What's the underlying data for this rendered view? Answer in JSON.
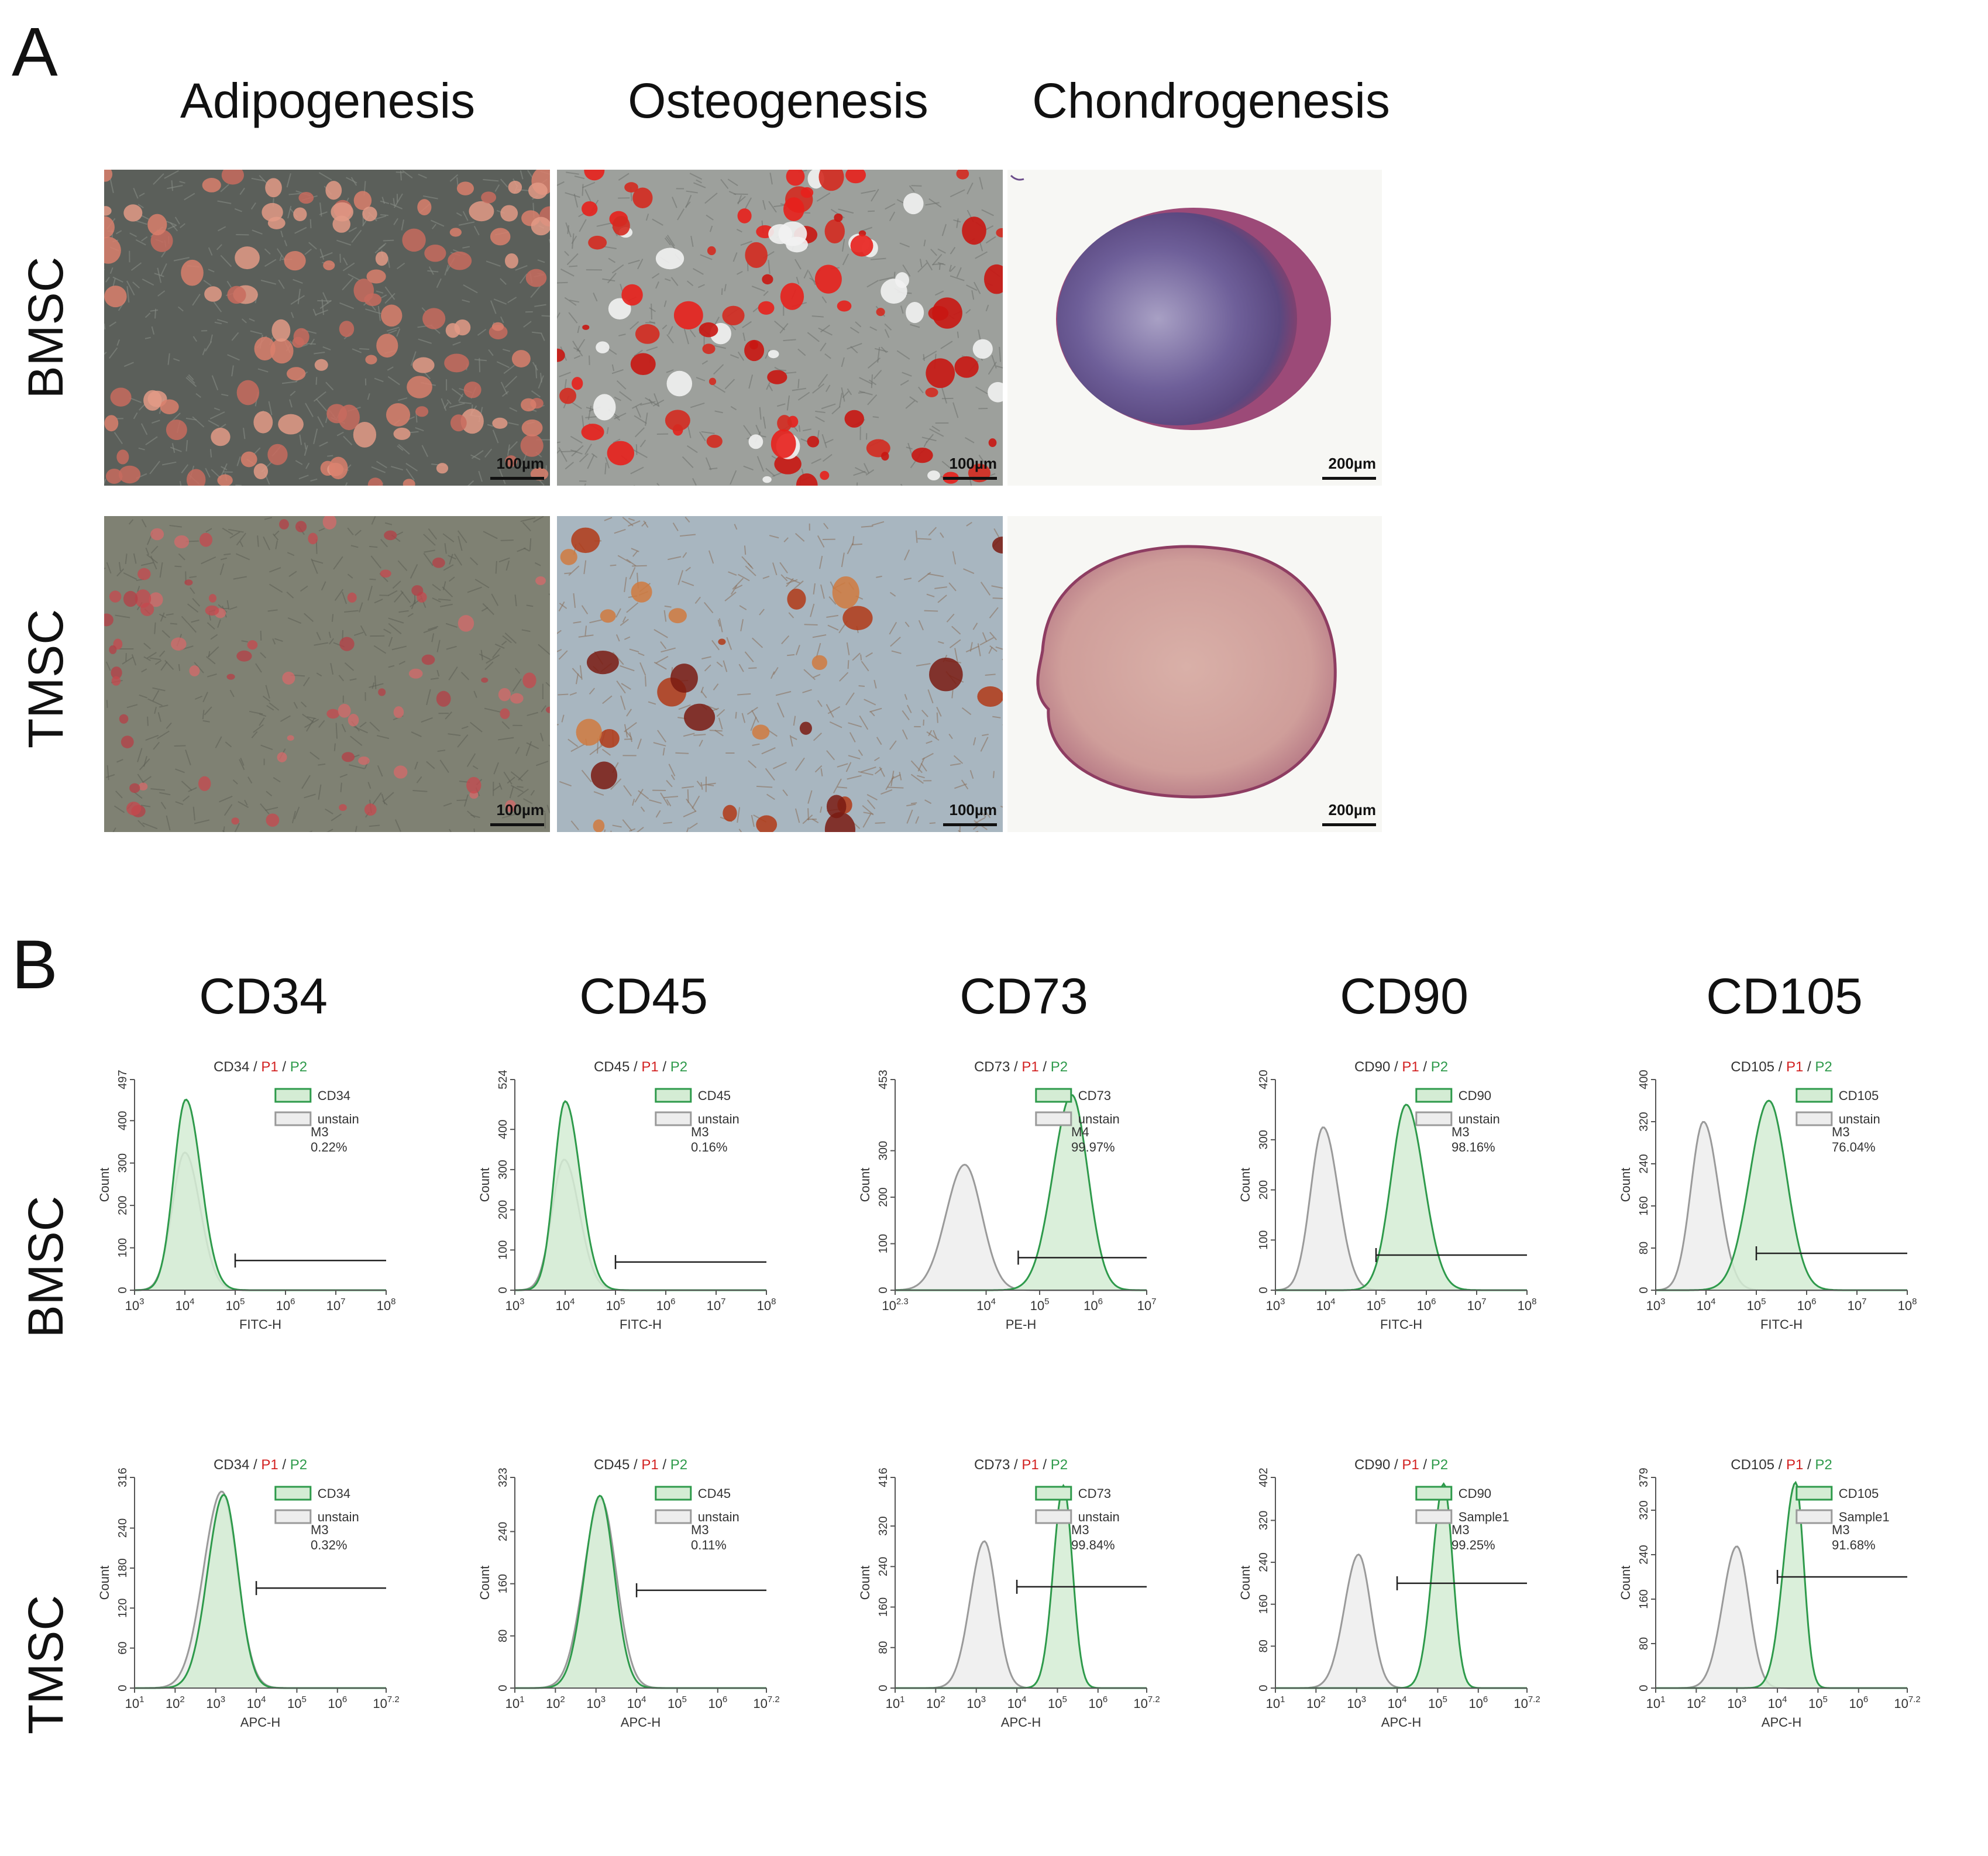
{
  "panel_a": {
    "letter": "A",
    "columns": [
      "Adipogenesis",
      "Osteogenesis",
      "Chondrogenesis"
    ],
    "rows": [
      "BMSC",
      "TMSC"
    ],
    "scale_bars": {
      "bmsc": [
        "100µm",
        "100µm",
        "200µm"
      ],
      "tmsc": [
        "100µm",
        "100µm",
        "200µm"
      ]
    }
  },
  "panel_b": {
    "letter": "B",
    "markers": [
      "CD34",
      "CD45",
      "CD73",
      "CD90",
      "CD105"
    ],
    "rows": [
      "BMSC",
      "TMSC"
    ]
  },
  "colors": {
    "green": "#2e9a4b",
    "green_fill": "#d4ecd4",
    "gray": "#9a9a9a",
    "gray_fill": "#ededed",
    "p1_red": "#d22020"
  },
  "chart_data": [
    {
      "type": "line",
      "id": "bmsc-cd34",
      "title_parts": [
        "CD34",
        "P1",
        "P2"
      ],
      "xlabel": "FITC-H",
      "ylabel": "Count",
      "x_log_range": [
        3,
        8
      ],
      "x_ticks": [
        "10^3",
        "10^4",
        "10^5",
        "10^6",
        "10^7",
        "10^8"
      ],
      "ylim": [
        0,
        497
      ],
      "y_ticks": [
        "0",
        "100",
        "200",
        "300",
        "400",
        "497"
      ],
      "legend": [
        "CD34",
        "unstain"
      ],
      "gate": {
        "name": "M3",
        "pct": "0.22%",
        "x_from": 5.0,
        "x_to": 8.0,
        "y": 70
      },
      "series": [
        {
          "name": "CD34",
          "peak_x": 4.02,
          "peak_y": 450,
          "width_l": 0.24,
          "width_r": 0.3
        },
        {
          "name": "unstain",
          "peak_x": 4.0,
          "peak_y": 325,
          "width_l": 0.25,
          "width_r": 0.3
        }
      ]
    },
    {
      "type": "line",
      "id": "bmsc-cd45",
      "title_parts": [
        "CD45",
        "P1",
        "P2"
      ],
      "xlabel": "FITC-H",
      "ylabel": "Count",
      "x_log_range": [
        3,
        8
      ],
      "x_ticks": [
        "10^3",
        "10^4",
        "10^5",
        "10^6",
        "10^7",
        "10^8"
      ],
      "ylim": [
        0,
        524
      ],
      "y_ticks": [
        "0",
        "100",
        "200",
        "300",
        "400",
        "524"
      ],
      "legend": [
        "CD45",
        "unstain"
      ],
      "gate": {
        "name": "M3",
        "pct": "0.16%",
        "x_from": 5.0,
        "x_to": 8.0,
        "y": 70
      },
      "series": [
        {
          "name": "CD45",
          "peak_x": 4.0,
          "peak_y": 470,
          "width_l": 0.22,
          "width_r": 0.3
        },
        {
          "name": "unstain",
          "peak_x": 3.98,
          "peak_y": 325,
          "width_l": 0.24,
          "width_r": 0.3
        }
      ]
    },
    {
      "type": "line",
      "id": "bmsc-cd73",
      "title_parts": [
        "CD73",
        "P1",
        "P2"
      ],
      "xlabel": "PE-H",
      "ylabel": "Count",
      "x_log_range": [
        2.3,
        7
      ],
      "x_ticks": [
        "10^2.3",
        "10^4",
        "10^5",
        "10^6",
        "10^7"
      ],
      "tick_positions": [
        2.3,
        4,
        5,
        6,
        7
      ],
      "ylim": [
        0,
        453
      ],
      "y_ticks": [
        "0",
        "100",
        "200",
        "300",
        "453"
      ],
      "legend": [
        "CD73",
        "unstain"
      ],
      "gate": {
        "name": "M4",
        "pct": "99.97%",
        "x_from": 4.6,
        "x_to": 7.0,
        "y": 70
      },
      "series": [
        {
          "name": "CD73",
          "peak_x": 5.6,
          "peak_y": 420,
          "width_l": 0.35,
          "width_r": 0.3
        },
        {
          "name": "unstain",
          "peak_x": 3.6,
          "peak_y": 270,
          "width_l": 0.35,
          "width_r": 0.32
        }
      ]
    },
    {
      "type": "line",
      "id": "bmsc-cd90",
      "title_parts": [
        "CD90",
        "P1",
        "P2"
      ],
      "xlabel": "FITC-H",
      "ylabel": "Count",
      "x_log_range": [
        3,
        8
      ],
      "x_ticks": [
        "10^3",
        "10^4",
        "10^5",
        "10^6",
        "10^7",
        "10^8"
      ],
      "ylim": [
        0,
        420
      ],
      "y_ticks": [
        "0",
        "100",
        "200",
        "300",
        "420"
      ],
      "legend": [
        "CD90",
        "unstain"
      ],
      "gate": {
        "name": "M3",
        "pct": "98.16%",
        "x_from": 5.0,
        "x_to": 8.0,
        "y": 70
      },
      "series": [
        {
          "name": "CD90",
          "peak_x": 5.6,
          "peak_y": 370,
          "width_l": 0.3,
          "width_r": 0.35
        },
        {
          "name": "unstain",
          "peak_x": 3.95,
          "peak_y": 325,
          "width_l": 0.25,
          "width_r": 0.3
        }
      ]
    },
    {
      "type": "line",
      "id": "bmsc-cd105",
      "title_parts": [
        "CD105",
        "P1",
        "P2"
      ],
      "xlabel": "FITC-H",
      "ylabel": "Count",
      "x_log_range": [
        3,
        8
      ],
      "x_ticks": [
        "10^3",
        "10^4",
        "10^5",
        "10^6",
        "10^7",
        "10^8"
      ],
      "ylim": [
        0,
        400
      ],
      "y_ticks": [
        "0",
        "80",
        "160",
        "240",
        "320",
        "400"
      ],
      "legend": [
        "CD105",
        "unstain"
      ],
      "gate": {
        "name": "M3",
        "pct": "76.04%",
        "x_from": 5.0,
        "x_to": 8.0,
        "y": 70
      },
      "series": [
        {
          "name": "CD105",
          "peak_x": 5.25,
          "peak_y": 360,
          "width_l": 0.38,
          "width_r": 0.35
        },
        {
          "name": "unstain",
          "peak_x": 3.95,
          "peak_y": 320,
          "width_l": 0.25,
          "width_r": 0.3
        }
      ]
    },
    {
      "type": "line",
      "id": "tmsc-cd34",
      "title_parts": [
        "CD34",
        "P1",
        "P2"
      ],
      "xlabel": "APC-H",
      "ylabel": "Count",
      "x_log_range": [
        1,
        7.2
      ],
      "x_ticks": [
        "10^1",
        "10^2",
        "10^3",
        "10^4",
        "10^5",
        "10^6",
        "10^7.2"
      ],
      "tick_positions": [
        1,
        2,
        3,
        4,
        5,
        6,
        7.2
      ],
      "ylim": [
        0,
        316
      ],
      "y_ticks": [
        "0",
        "60",
        "120",
        "180",
        "240",
        "316"
      ],
      "legend": [
        "CD34",
        "unstain"
      ],
      "gate": {
        "name": "M3",
        "pct": "0.32%",
        "x_from": 4.0,
        "x_to": 7.2,
        "y": 150
      },
      "series": [
        {
          "name": "CD34",
          "peak_x": 3.2,
          "peak_y": 290,
          "width_l": 0.4,
          "width_r": 0.35
        },
        {
          "name": "unstain",
          "peak_x": 3.15,
          "peak_y": 295,
          "width_l": 0.45,
          "width_r": 0.38
        }
      ]
    },
    {
      "type": "line",
      "id": "tmsc-cd45",
      "title_parts": [
        "CD45",
        "P1",
        "P2"
      ],
      "xlabel": "APC-H",
      "ylabel": "Count",
      "x_log_range": [
        1,
        7.2
      ],
      "x_ticks": [
        "10^1",
        "10^2",
        "10^3",
        "10^4",
        "10^5",
        "10^6",
        "10^7.2"
      ],
      "tick_positions": [
        1,
        2,
        3,
        4,
        5,
        6,
        7.2
      ],
      "ylim": [
        0,
        323
      ],
      "y_ticks": [
        "0",
        "80",
        "160",
        "240",
        "323"
      ],
      "legend": [
        "CD45",
        "unstain"
      ],
      "gate": {
        "name": "M3",
        "pct": "0.11%",
        "x_from": 4.0,
        "x_to": 7.2,
        "y": 150
      },
      "series": [
        {
          "name": "CD45",
          "peak_x": 3.1,
          "peak_y": 295,
          "width_l": 0.38,
          "width_r": 0.35
        },
        {
          "name": "unstain",
          "peak_x": 3.12,
          "peak_y": 290,
          "width_l": 0.42,
          "width_r": 0.38
        }
      ]
    },
    {
      "type": "line",
      "id": "tmsc-cd73",
      "title_parts": [
        "CD73",
        "P1",
        "P2"
      ],
      "xlabel": "APC-H",
      "ylabel": "Count",
      "x_log_range": [
        1,
        7.2
      ],
      "x_ticks": [
        "10^1",
        "10^2",
        "10^3",
        "10^4",
        "10^5",
        "10^6",
        "10^7.2"
      ],
      "tick_positions": [
        1,
        2,
        3,
        4,
        5,
        6,
        7.2
      ],
      "ylim": [
        0,
        416
      ],
      "y_ticks": [
        "0",
        "80",
        "160",
        "240",
        "320",
        "416"
      ],
      "legend": [
        "CD73",
        "unstain"
      ],
      "gate": {
        "name": "M3",
        "pct": "99.84%",
        "x_from": 4.0,
        "x_to": 7.2,
        "y": 200
      },
      "series": [
        {
          "name": "CD73",
          "peak_x": 5.15,
          "peak_y": 400,
          "width_l": 0.25,
          "width_r": 0.22
        },
        {
          "name": "unstain",
          "peak_x": 3.2,
          "peak_y": 290,
          "width_l": 0.35,
          "width_r": 0.3
        }
      ]
    },
    {
      "type": "line",
      "id": "tmsc-cd90",
      "title_parts": [
        "CD90",
        "P1",
        "P2"
      ],
      "xlabel": "APC-H",
      "ylabel": "Count",
      "x_log_range": [
        1,
        7.2
      ],
      "x_ticks": [
        "10^1",
        "10^2",
        "10^3",
        "10^4",
        "10^5",
        "10^6",
        "10^7.2"
      ],
      "tick_positions": [
        1,
        2,
        3,
        4,
        5,
        6,
        7.2
      ],
      "ylim": [
        0,
        402
      ],
      "y_ticks": [
        "0",
        "80",
        "160",
        "240",
        "320",
        "402"
      ],
      "legend": [
        "CD90",
        "Sample1"
      ],
      "gate": {
        "name": "M3",
        "pct": "99.25%",
        "x_from": 4.0,
        "x_to": 7.2,
        "y": 200
      },
      "series": [
        {
          "name": "CD90",
          "peak_x": 5.15,
          "peak_y": 390,
          "width_l": 0.28,
          "width_r": 0.22
        },
        {
          "name": "Sample1",
          "peak_x": 3.05,
          "peak_y": 255,
          "width_l": 0.35,
          "width_r": 0.3
        }
      ]
    },
    {
      "type": "line",
      "id": "tmsc-cd105",
      "title_parts": [
        "CD105",
        "P1",
        "P2"
      ],
      "xlabel": "APC-H",
      "ylabel": "Count",
      "x_log_range": [
        1,
        7.2
      ],
      "x_ticks": [
        "10^1",
        "10^2",
        "10^3",
        "10^4",
        "10^5",
        "10^6",
        "10^7.2"
      ],
      "tick_positions": [
        1,
        2,
        3,
        4,
        5,
        6,
        7.2
      ],
      "ylim": [
        0,
        379
      ],
      "y_ticks": [
        "0",
        "80",
        "160",
        "240",
        "320",
        "379"
      ],
      "legend": [
        "CD105",
        "Sample1"
      ],
      "gate": {
        "name": "M3",
        "pct": "91.68%",
        "x_from": 4.0,
        "x_to": 7.2,
        "y": 200
      },
      "series": [
        {
          "name": "CD105",
          "peak_x": 4.45,
          "peak_y": 370,
          "width_l": 0.3,
          "width_r": 0.2
        },
        {
          "name": "Sample1",
          "peak_x": 3.0,
          "peak_y": 255,
          "width_l": 0.35,
          "width_r": 0.3
        }
      ]
    }
  ]
}
